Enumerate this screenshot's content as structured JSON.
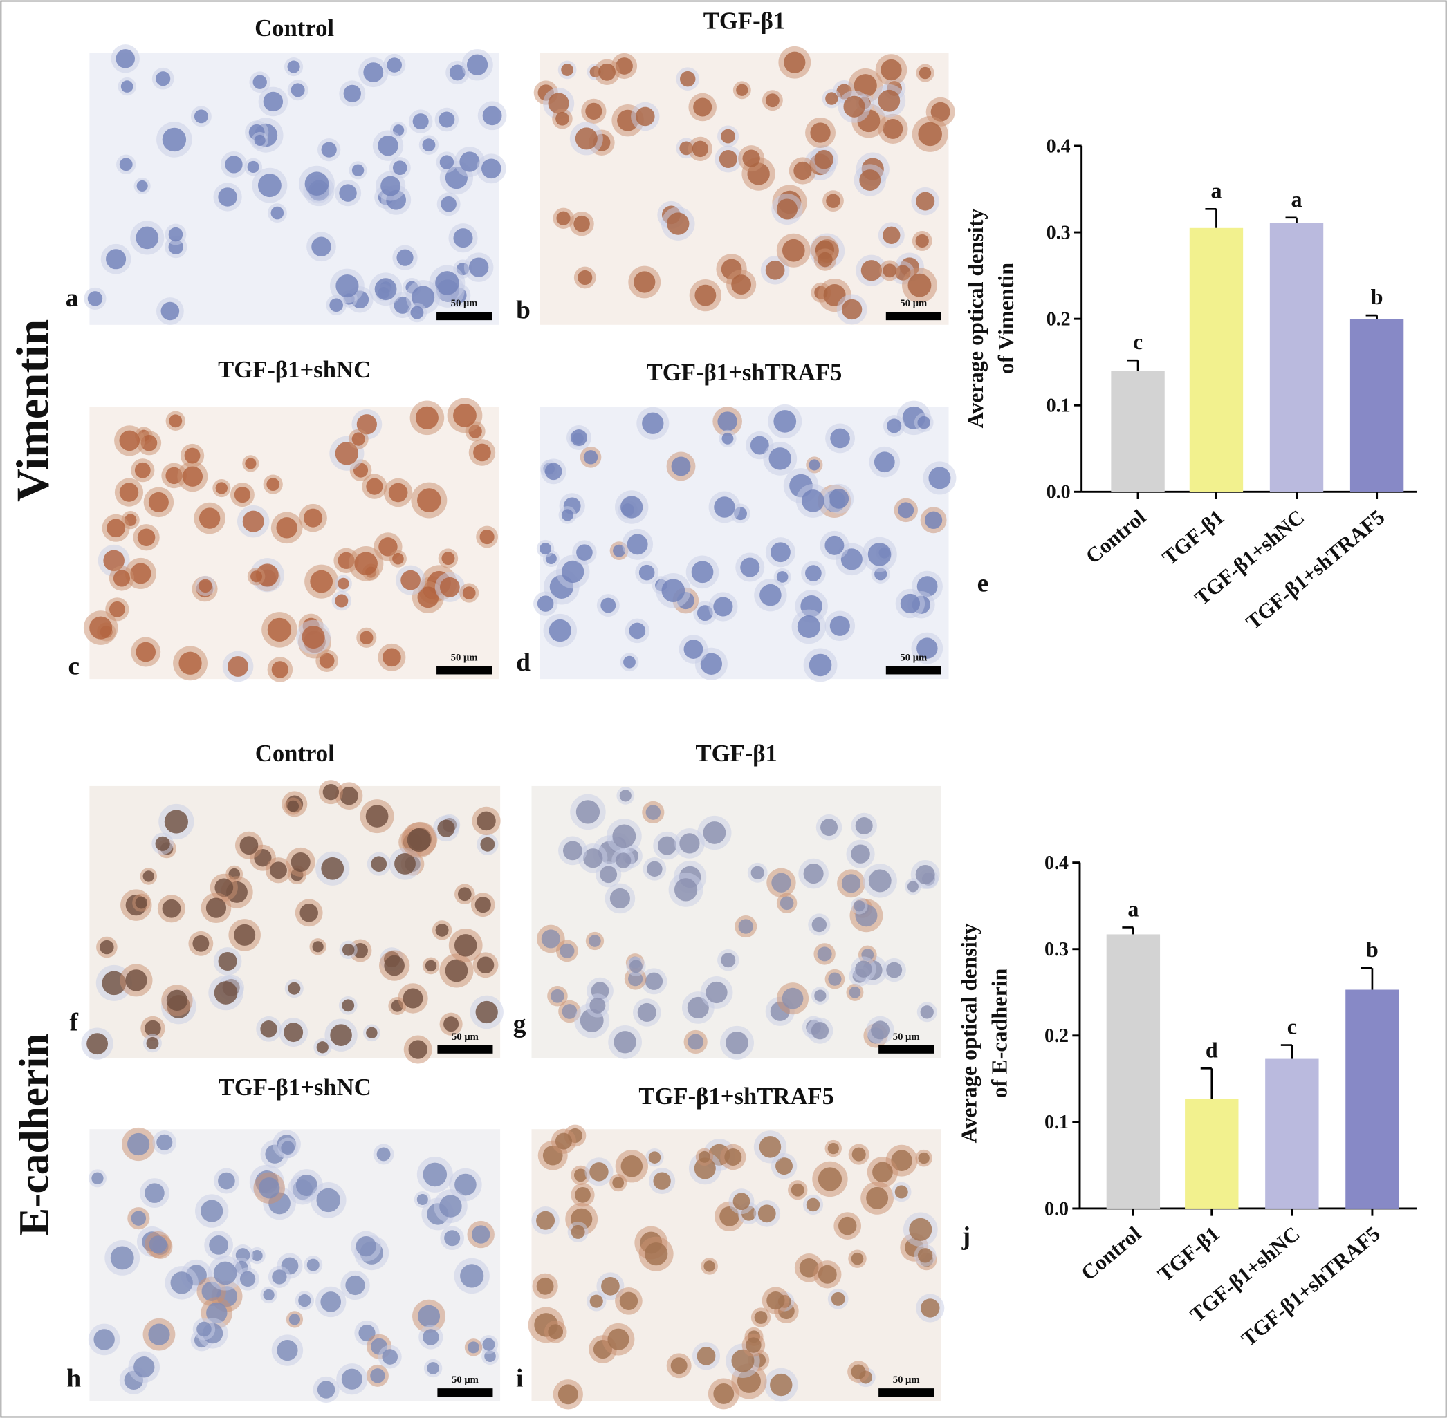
{
  "row_labels": [
    "Vimentin",
    "E-cadherin"
  ],
  "panels": [
    {
      "letter": "a",
      "title": "Control",
      "scale_bar": "50 μm"
    },
    {
      "letter": "b",
      "title": "TGF-β1",
      "scale_bar": "50 μm"
    },
    {
      "letter": "c",
      "title": "TGF-β1+shNC",
      "scale_bar": "50 μm"
    },
    {
      "letter": "d",
      "title": "TGF-β1+shTRAF5",
      "scale_bar": "50 μm"
    },
    {
      "letter": "f",
      "title": "Control",
      "scale_bar": "50 μm"
    },
    {
      "letter": "g",
      "title": "TGF-β1",
      "scale_bar": "50 μm"
    },
    {
      "letter": "h",
      "title": "TGF-β1+shNC",
      "scale_bar": "50 μm"
    },
    {
      "letter": "i",
      "title": "TGF-β1+shTRAF5",
      "scale_bar": "50 μm"
    }
  ],
  "chart_data": [
    {
      "type": "bar",
      "panel_letter": "e",
      "ylabel": [
        "Average optical density",
        "of Vimentin"
      ],
      "categories": [
        "Control",
        "TGF-β1",
        "TGF-β1+shNC",
        "TGF-β1+shTRAF5"
      ],
      "values": [
        0.14,
        0.305,
        0.311,
        0.2
      ],
      "errors": [
        0.012,
        0.022,
        0.006,
        0.004
      ],
      "annotations": [
        "c",
        "a",
        "a",
        "b"
      ],
      "colors": [
        "#d3d3d3",
        "#f2f18e",
        "#babade",
        "#8789c6"
      ],
      "ylim": [
        0,
        0.4
      ],
      "yticks": [
        {
          "value": 0,
          "label": "0.0"
        },
        0.1,
        0.2,
        0.3,
        0.4
      ]
    },
    {
      "type": "bar",
      "panel_letter": "j",
      "ylabel": [
        "Average optical density",
        "of E-cadherin"
      ],
      "categories": [
        "Control",
        "TGF-β1",
        "TGF-β1+shNC",
        "TGF-β1+shTRAF5"
      ],
      "values": [
        0.317,
        0.127,
        0.173,
        0.253
      ],
      "errors": [
        0.008,
        0.035,
        0.016,
        0.025
      ],
      "annotations": [
        "a",
        "d",
        "c",
        "b"
      ],
      "colors": [
        "#d3d3d3",
        "#f2f18e",
        "#babade",
        "#8789c6"
      ],
      "ylim": [
        0,
        0.4
      ],
      "yticks": [
        {
          "value": 0,
          "label": "0.0"
        },
        0.1,
        0.2,
        0.3,
        0.4
      ]
    }
  ]
}
